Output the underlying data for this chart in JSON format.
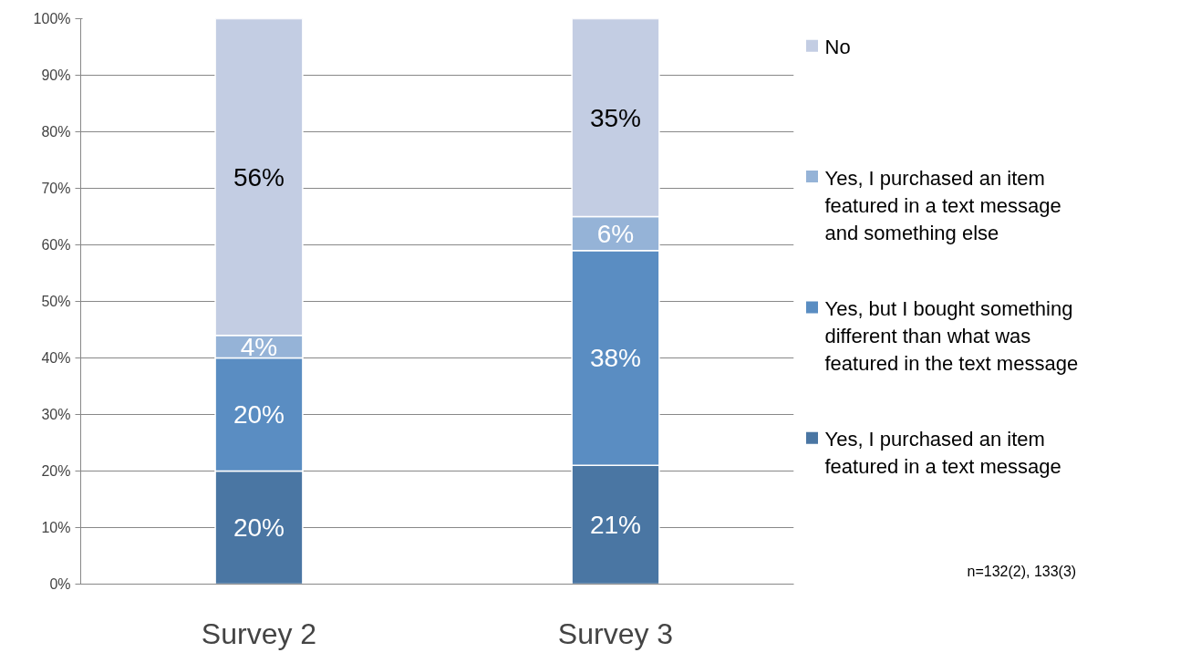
{
  "chart_data": {
    "type": "bar",
    "stacked": true,
    "categories": [
      "Survey 2",
      "Survey 3"
    ],
    "series": [
      {
        "name": "Yes, I purchased an item featured in a text message",
        "color": "#4a76a3",
        "values": [
          20,
          21
        ],
        "value_labels": [
          "20%",
          "21%"
        ]
      },
      {
        "name": "Yes, but I bought something different than what was featured in the text message",
        "color": "#5a8dc2",
        "values": [
          20,
          38
        ],
        "value_labels": [
          "20%",
          "38%"
        ]
      },
      {
        "name": "Yes, I purchased an item featured in a text message and something else",
        "color": "#95b3d7",
        "values": [
          4,
          6
        ],
        "value_labels": [
          "4%",
          "6%"
        ]
      },
      {
        "name": "No",
        "color": "#c3cde3",
        "values": [
          56,
          35
        ],
        "value_labels": [
          "56%",
          "35%"
        ]
      }
    ],
    "ylim": [
      0,
      100
    ],
    "yticks": [
      {
        "value": 0,
        "label": "0%"
      },
      {
        "value": 10,
        "label": "10%"
      },
      {
        "value": 20,
        "label": "20%"
      },
      {
        "value": 30,
        "label": "30%"
      },
      {
        "value": 40,
        "label": "40%"
      },
      {
        "value": 50,
        "label": "50%"
      },
      {
        "value": 60,
        "label": "60%"
      },
      {
        "value": 70,
        "label": "70%"
      },
      {
        "value": 80,
        "label": "80%"
      },
      {
        "value": 90,
        "label": "90%"
      },
      {
        "value": 100,
        "label": "100%"
      }
    ],
    "grid": "y",
    "legend": "right",
    "annotations": [
      "n=132(2), 133(3)"
    ]
  }
}
